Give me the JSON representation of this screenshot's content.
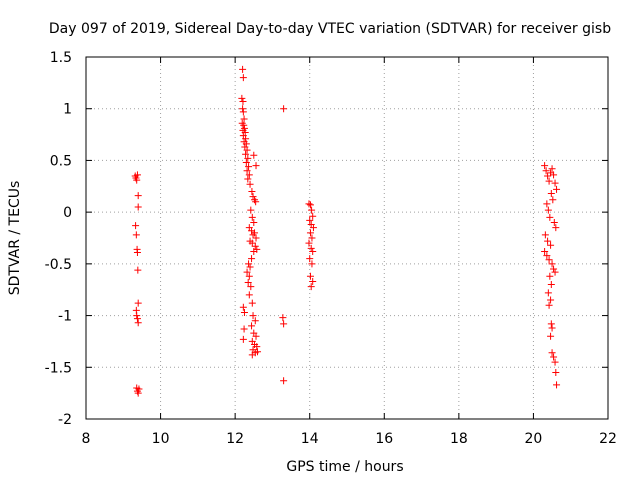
{
  "chart_data": {
    "type": "scatter",
    "title": "Day 097 of 2019, Sidereal Day-to-day VTEC variation (SDTVAR) for receiver gisb",
    "xlabel": "GPS time / hours",
    "ylabel": "SDTVAR / TECUs",
    "xlim": [
      8,
      22
    ],
    "ylim": [
      -2,
      1.5
    ],
    "xticks": [
      "8",
      "10",
      "12",
      "14",
      "16",
      "18",
      "20",
      "22"
    ],
    "yticks": [
      "-2",
      "-1.5",
      "-1",
      "-0.5",
      "0",
      "0.5",
      "1",
      "1.5"
    ],
    "grid": true,
    "marker": "+",
    "color": "#ff0000",
    "series": [
      {
        "name": "SDTVAR",
        "points": [
          [
            9.32,
            0.35
          ],
          [
            9.34,
            0.33
          ],
          [
            9.36,
            0.31
          ],
          [
            9.38,
            0.36
          ],
          [
            9.4,
            0.16
          ],
          [
            9.4,
            0.05
          ],
          [
            9.33,
            -0.13
          ],
          [
            9.35,
            -0.22
          ],
          [
            9.37,
            -0.36
          ],
          [
            9.38,
            -0.39
          ],
          [
            9.39,
            -0.56
          ],
          [
            9.4,
            -0.88
          ],
          [
            9.35,
            -0.95
          ],
          [
            9.36,
            -1.0
          ],
          [
            9.38,
            -1.03
          ],
          [
            9.4,
            -1.07
          ],
          [
            9.36,
            -1.7
          ],
          [
            9.38,
            -1.73
          ],
          [
            9.4,
            -1.75
          ],
          [
            9.42,
            -1.71
          ],
          [
            12.2,
            1.38
          ],
          [
            12.22,
            1.3
          ],
          [
            12.18,
            1.1
          ],
          [
            12.21,
            1.07
          ],
          [
            12.2,
            1.0
          ],
          [
            12.22,
            0.97
          ],
          [
            12.24,
            0.9
          ],
          [
            12.19,
            0.86
          ],
          [
            12.23,
            0.84
          ],
          [
            12.25,
            0.81
          ],
          [
            12.21,
            0.79
          ],
          [
            12.27,
            0.77
          ],
          [
            12.22,
            0.74
          ],
          [
            12.28,
            0.71
          ],
          [
            12.24,
            0.68
          ],
          [
            12.3,
            0.66
          ],
          [
            12.26,
            0.63
          ],
          [
            12.32,
            0.6
          ],
          [
            12.28,
            0.56
          ],
          [
            12.34,
            0.52
          ],
          [
            12.3,
            0.48
          ],
          [
            12.36,
            0.44
          ],
          [
            12.32,
            0.4
          ],
          [
            12.38,
            0.36
          ],
          [
            12.34,
            0.32
          ],
          [
            12.4,
            0.27
          ],
          [
            12.45,
            0.2
          ],
          [
            12.48,
            0.15
          ],
          [
            12.52,
            0.12
          ],
          [
            12.55,
            0.1
          ],
          [
            12.42,
            0.02
          ],
          [
            12.46,
            -0.05
          ],
          [
            12.5,
            -0.1
          ],
          [
            12.38,
            -0.15
          ],
          [
            12.44,
            -0.18
          ],
          [
            12.52,
            -0.2
          ],
          [
            12.48,
            -0.22
          ],
          [
            12.56,
            -0.25
          ],
          [
            12.4,
            -0.28
          ],
          [
            12.46,
            -0.3
          ],
          [
            12.54,
            -0.33
          ],
          [
            12.58,
            -0.36
          ],
          [
            12.5,
            -0.38
          ],
          [
            12.44,
            -0.45
          ],
          [
            12.36,
            -0.5
          ],
          [
            12.4,
            -0.53
          ],
          [
            12.32,
            -0.58
          ],
          [
            12.38,
            -0.62
          ],
          [
            12.35,
            -0.68
          ],
          [
            12.42,
            -0.72
          ],
          [
            12.38,
            -0.8
          ],
          [
            12.46,
            -0.88
          ],
          [
            12.22,
            -0.92
          ],
          [
            12.25,
            -0.97
          ],
          [
            12.48,
            -1.0
          ],
          [
            12.54,
            -1.05
          ],
          [
            12.44,
            -1.1
          ],
          [
            12.24,
            -1.13
          ],
          [
            12.5,
            -1.17
          ],
          [
            12.56,
            -1.2
          ],
          [
            12.22,
            -1.23
          ],
          [
            12.46,
            -1.25
          ],
          [
            12.52,
            -1.28
          ],
          [
            12.58,
            -1.3
          ],
          [
            12.48,
            -1.33
          ],
          [
            12.54,
            -1.36
          ],
          [
            12.46,
            -1.38
          ],
          [
            12.6,
            -1.35
          ],
          [
            12.5,
            0.55
          ],
          [
            12.56,
            0.45
          ],
          [
            13.3,
            1.0
          ],
          [
            13.28,
            -1.02
          ],
          [
            13.3,
            -1.08
          ],
          [
            13.3,
            -1.63
          ],
          [
            13.98,
            0.08
          ],
          [
            14.02,
            0.07
          ],
          [
            14.05,
            0.02
          ],
          [
            14.08,
            -0.04
          ],
          [
            14.0,
            -0.08
          ],
          [
            14.04,
            -0.12
          ],
          [
            14.1,
            -0.15
          ],
          [
            14.02,
            -0.2
          ],
          [
            14.06,
            -0.25
          ],
          [
            13.98,
            -0.3
          ],
          [
            14.04,
            -0.35
          ],
          [
            14.08,
            -0.38
          ],
          [
            14.0,
            -0.45
          ],
          [
            14.06,
            -0.5
          ],
          [
            14.02,
            -0.62
          ],
          [
            14.08,
            -0.67
          ],
          [
            14.04,
            -0.72
          ],
          [
            20.3,
            0.45
          ],
          [
            20.34,
            0.4
          ],
          [
            20.38,
            0.35
          ],
          [
            20.42,
            0.3
          ],
          [
            20.46,
            0.38
          ],
          [
            20.5,
            0.42
          ],
          [
            20.54,
            0.36
          ],
          [
            20.58,
            0.28
          ],
          [
            20.62,
            0.22
          ],
          [
            20.48,
            0.18
          ],
          [
            20.52,
            0.12
          ],
          [
            20.36,
            0.08
          ],
          [
            20.4,
            0.02
          ],
          [
            20.44,
            -0.05
          ],
          [
            20.56,
            -0.1
          ],
          [
            20.6,
            -0.15
          ],
          [
            20.32,
            -0.22
          ],
          [
            20.38,
            -0.28
          ],
          [
            20.46,
            -0.32
          ],
          [
            20.3,
            -0.38
          ],
          [
            20.36,
            -0.42
          ],
          [
            20.42,
            -0.46
          ],
          [
            20.5,
            -0.5
          ],
          [
            20.54,
            -0.55
          ],
          [
            20.58,
            -0.58
          ],
          [
            20.44,
            -0.62
          ],
          [
            20.48,
            -0.7
          ],
          [
            20.4,
            -0.78
          ],
          [
            20.46,
            -0.85
          ],
          [
            20.42,
            -0.9
          ],
          [
            20.48,
            -1.08
          ],
          [
            20.5,
            -1.12
          ],
          [
            20.46,
            -1.2
          ],
          [
            20.5,
            -1.36
          ],
          [
            20.54,
            -1.4
          ],
          [
            20.58,
            -1.45
          ],
          [
            20.6,
            -1.55
          ],
          [
            20.62,
            -1.67
          ]
        ]
      }
    ]
  }
}
